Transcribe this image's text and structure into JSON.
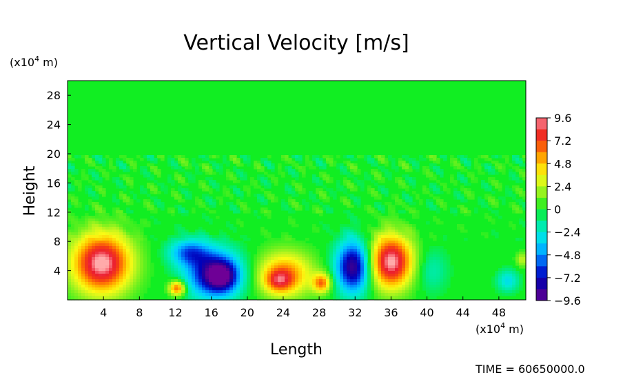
{
  "chart_data": {
    "type": "heatmap",
    "title": "Vertical Velocity [m/s]",
    "xlabel": "Length",
    "ylabel": "Height",
    "x_unit_prefix": "(x10",
    "x_unit_exp": "4",
    "x_unit_suffix": " m)",
    "y_unit_prefix": "(x10",
    "y_unit_exp": "4",
    "y_unit_suffix": " m)",
    "xlim": [
      0,
      51
    ],
    "ylim": [
      0,
      30
    ],
    "x_ticks": [
      "4",
      "8",
      "12",
      "16",
      "20",
      "24",
      "28",
      "32",
      "36",
      "40",
      "44",
      "48"
    ],
    "y_ticks": [
      "4",
      "8",
      "12",
      "16",
      "20",
      "24",
      "28"
    ],
    "colorbar": {
      "min": -9.6,
      "max": 9.6,
      "tick_labels": [
        "9.6",
        "7.2",
        "4.8",
        "2.4",
        "0",
        "−2.4",
        "−4.8",
        "−7.2",
        "−9.6"
      ],
      "tick_values": [
        9.6,
        7.2,
        4.8,
        2.4,
        0,
        -2.4,
        -4.8,
        -7.2,
        -9.6
      ]
    },
    "features": [
      {
        "x": 3.8,
        "y": 5.0,
        "rx": 3.2,
        "ry": 4.0,
        "value": 10.0
      },
      {
        "x": 12.2,
        "y": 1.6,
        "rx": 0.9,
        "ry": 1.0,
        "value": 7.0
      },
      {
        "x": 13.5,
        "y": 6.5,
        "rx": 2.2,
        "ry": 1.8,
        "value": -5.0
      },
      {
        "x": 16.3,
        "y": 3.5,
        "rx": 3.0,
        "ry": 3.2,
        "value": -8.5
      },
      {
        "x": 17.3,
        "y": 3.2,
        "rx": 1.6,
        "ry": 2.0,
        "value": -4.0
      },
      {
        "x": 24.2,
        "y": 3.5,
        "rx": 3.0,
        "ry": 3.0,
        "value": 6.0
      },
      {
        "x": 23.5,
        "y": 2.6,
        "rx": 1.5,
        "ry": 1.5,
        "value": 4.0
      },
      {
        "x": 28.3,
        "y": 2.3,
        "rx": 1.0,
        "ry": 1.3,
        "value": 6.0
      },
      {
        "x": 31.8,
        "y": 4.5,
        "rx": 1.9,
        "ry": 3.5,
        "value": -9.0
      },
      {
        "x": 36.0,
        "y": 5.2,
        "rx": 2.4,
        "ry": 3.6,
        "value": 9.8
      },
      {
        "x": 40.5,
        "y": 4.0,
        "rx": 1.8,
        "ry": 3.0,
        "value": -1.8
      },
      {
        "x": 49.0,
        "y": 2.6,
        "rx": 1.2,
        "ry": 1.5,
        "value": -3.0
      },
      {
        "x": 50.6,
        "y": 5.5,
        "rx": 0.7,
        "ry": 1.0,
        "value": 2.5
      }
    ],
    "annotation": "TIME =  60650000.0"
  }
}
